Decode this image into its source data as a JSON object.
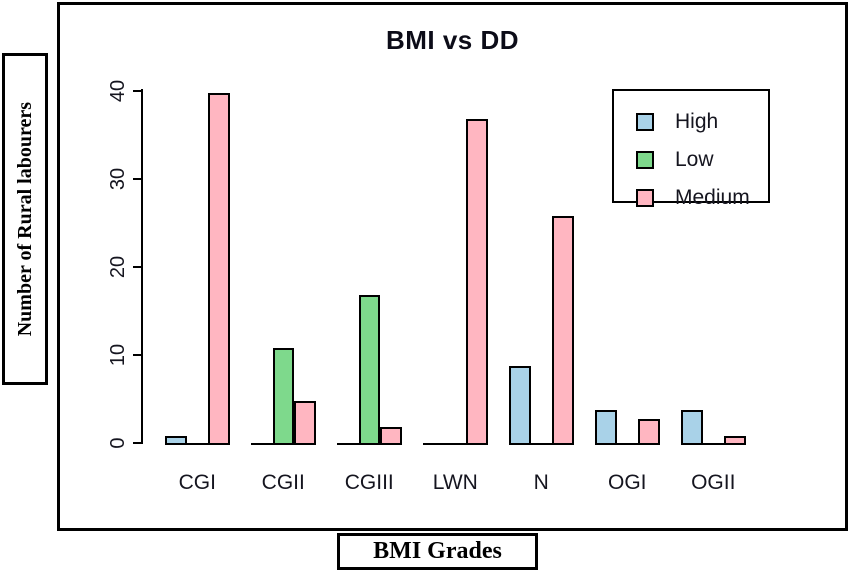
{
  "chart_data": {
    "type": "bar",
    "title": "BMI vs DD",
    "xlabel": "BMI Grades",
    "ylabel": "Number of Rural labourers",
    "categories": [
      "CGI",
      "CGII",
      "CGIII",
      "LWN",
      "N",
      "OGI",
      "OGII"
    ],
    "series": [
      {
        "name": "High",
        "color": "#A9D2E8",
        "values": [
          1,
          0,
          0,
          0,
          9,
          4,
          4
        ]
      },
      {
        "name": "Low",
        "color": "#7ED98C",
        "values": [
          0,
          11,
          17,
          0,
          0,
          0,
          0
        ]
      },
      {
        "name": "Medium",
        "color": "#FFB6C1",
        "values": [
          40,
          5,
          2,
          37,
          26,
          3,
          1
        ]
      }
    ],
    "ylim": [
      0,
      40
    ],
    "yticks": [
      0,
      10,
      20,
      30,
      40
    ],
    "grid": false,
    "legend_position": "top-right",
    "bar_border_color": "#000000",
    "axis_color": "#000000"
  }
}
